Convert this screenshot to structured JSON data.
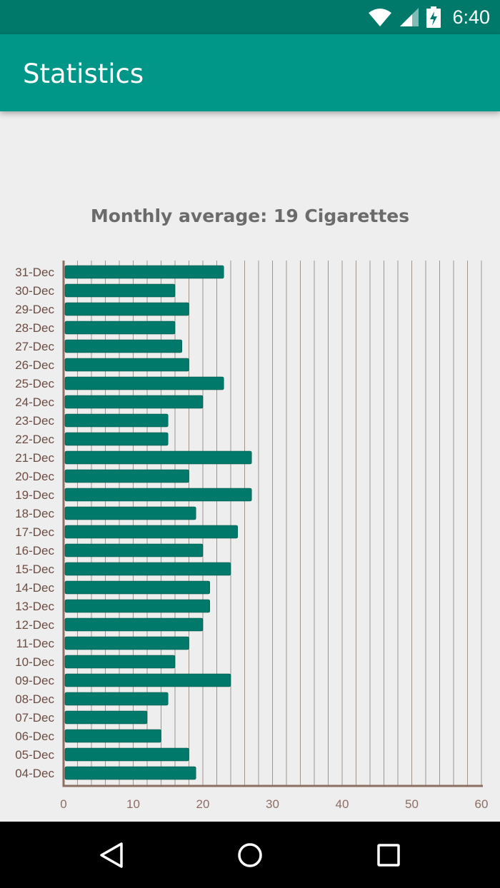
{
  "status_bar": {
    "time": "6:40",
    "icons": [
      "wifi-icon",
      "signal-icon",
      "battery-charging-icon"
    ]
  },
  "app_bar": {
    "title": "Statistics"
  },
  "chart_title": "Monthly average: 19 Cigarettes",
  "colors": {
    "status_bar": "#00796b",
    "app_bar": "#009688",
    "bar": "#00796b",
    "axis": "#8d6e63",
    "tick_text": "#8d6e63",
    "label_text": "#6d4c41",
    "grid": "#a0948c"
  },
  "chart_data": {
    "type": "bar",
    "orientation": "horizontal",
    "categories": [
      "31-Dec",
      "30-Dec",
      "29-Dec",
      "28-Dec",
      "27-Dec",
      "26-Dec",
      "25-Dec",
      "24-Dec",
      "23-Dec",
      "22-Dec",
      "21-Dec",
      "20-Dec",
      "19-Dec",
      "18-Dec",
      "17-Dec",
      "16-Dec",
      "15-Dec",
      "14-Dec",
      "13-Dec",
      "12-Dec",
      "11-Dec",
      "10-Dec",
      "09-Dec",
      "08-Dec",
      "07-Dec",
      "06-Dec",
      "05-Dec",
      "04-Dec"
    ],
    "values": [
      23,
      16,
      18,
      16,
      17,
      18,
      23,
      20,
      15,
      15,
      27,
      18,
      27,
      19,
      25,
      20,
      24,
      21,
      21,
      20,
      18,
      16,
      24,
      15,
      12,
      14,
      18,
      19
    ],
    "xlim": [
      0,
      60
    ],
    "xticks": [
      0,
      10,
      20,
      30,
      40,
      50,
      60
    ],
    "grid_step": 2,
    "grid": true
  },
  "nav_bar": {
    "buttons": [
      "back-button",
      "home-button",
      "recents-button"
    ]
  }
}
